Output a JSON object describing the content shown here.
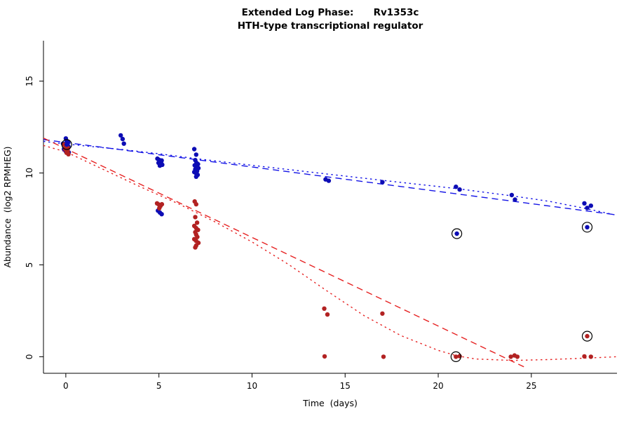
{
  "title": {
    "line1": "Extended Log Phase:      Rv1353c",
    "line2": "HTH-type transcriptional regulator"
  },
  "chart_data": {
    "type": "scatter",
    "title": "Extended Log Phase: Rv1353c / HTH-type transcriptional regulator",
    "xlabel": "Time  (days)",
    "ylabel": "Abundance  (log2 RPMHEG)",
    "xlim": [
      -1.2,
      29.6
    ],
    "ylim": [
      -0.9,
      17.2
    ],
    "x_ticks": [
      0,
      5,
      10,
      15,
      20,
      25
    ],
    "y_ticks": [
      0,
      5,
      10,
      15
    ],
    "grid": false,
    "legend": null,
    "colors": {
      "blue_point": "#0d0db5",
      "blue_line": "#1414e6",
      "red_point": "#b22222",
      "red_line": "#e62222",
      "ring": "#000000"
    },
    "series": [
      {
        "name": "series-blue",
        "color_key": "blue_point",
        "points": [
          [
            -0.15,
            11.6
          ],
          [
            0,
            11.88
          ],
          [
            0.05,
            11.74
          ],
          [
            0.12,
            11.66
          ],
          [
            -0.05,
            11.55
          ],
          [
            0.02,
            11.5
          ],
          [
            0.14,
            11.44
          ],
          [
            0.05,
            11.38
          ],
          [
            -0.1,
            11.3
          ],
          [
            0.08,
            11.26
          ],
          [
            0,
            11.18
          ],
          [
            0.16,
            11.12
          ],
          [
            2.95,
            12.05
          ],
          [
            3.05,
            11.85
          ],
          [
            3.12,
            11.6
          ],
          [
            4.92,
            10.78
          ],
          [
            5,
            10.72
          ],
          [
            5.06,
            10.66
          ],
          [
            5.12,
            10.6
          ],
          [
            4.98,
            10.55
          ],
          [
            5.1,
            10.5
          ],
          [
            5.18,
            10.45
          ],
          [
            5.05,
            10.4
          ],
          [
            5.15,
            10.68
          ],
          [
            4.95,
            7.95
          ],
          [
            5.05,
            7.85
          ],
          [
            5.15,
            7.76
          ],
          [
            6.9,
            11.3
          ],
          [
            7,
            11
          ],
          [
            6.95,
            10.7
          ],
          [
            7.02,
            10.55
          ],
          [
            7.1,
            10.48
          ],
          [
            6.92,
            10.42
          ],
          [
            7,
            10.36
          ],
          [
            7.06,
            10.3
          ],
          [
            7.12,
            10.26
          ],
          [
            6.95,
            10.2
          ],
          [
            7,
            10.15
          ],
          [
            7.05,
            10.1
          ],
          [
            6.9,
            10.05
          ],
          [
            7,
            9.98
          ],
          [
            7.08,
            9.9
          ],
          [
            7,
            9.8
          ],
          [
            13.95,
            9.65
          ],
          [
            14.12,
            9.58
          ],
          [
            17,
            9.5
          ],
          [
            20.95,
            9.25
          ],
          [
            21.15,
            9.1
          ],
          [
            23.95,
            8.8
          ],
          [
            24.12,
            8.55
          ],
          [
            27.85,
            8.35
          ],
          [
            28,
            8.1
          ],
          [
            28.2,
            8.22
          ]
        ]
      },
      {
        "name": "series-red",
        "color_key": "red_point",
        "points": [
          [
            -0.1,
            11.55
          ],
          [
            0,
            11.45
          ],
          [
            0.06,
            11.4
          ],
          [
            0.12,
            11.35
          ],
          [
            -0.04,
            11.3
          ],
          [
            0.02,
            11.24
          ],
          [
            0.1,
            11.18
          ],
          [
            0.04,
            11.1
          ],
          [
            0.14,
            11.02
          ],
          [
            4.9,
            8.35
          ],
          [
            5,
            8.28
          ],
          [
            5.08,
            8.2
          ],
          [
            5.16,
            8.3
          ],
          [
            5.02,
            8.08
          ],
          [
            6.92,
            8.45
          ],
          [
            7,
            8.3
          ],
          [
            6.95,
            7.6
          ],
          [
            7.05,
            7.3
          ],
          [
            6.9,
            7.12
          ],
          [
            7,
            7
          ],
          [
            7.1,
            6.9
          ],
          [
            6.95,
            6.78
          ],
          [
            7,
            6.65
          ],
          [
            7.06,
            6.52
          ],
          [
            6.9,
            6.4
          ],
          [
            7,
            6.3
          ],
          [
            7.12,
            6.2
          ],
          [
            7,
            6.05
          ],
          [
            6.95,
            5.95
          ],
          [
            13.88,
            2.62
          ],
          [
            14.05,
            2.3
          ],
          [
            13.9,
            0.02
          ],
          [
            17,
            2.35
          ],
          [
            17.06,
            0
          ],
          [
            21.15,
            0.03
          ],
          [
            23.9,
            0
          ],
          [
            24.1,
            0.07
          ],
          [
            24.25,
            0
          ],
          [
            27.85,
            0.02
          ],
          [
            28.2,
            0
          ]
        ]
      }
    ],
    "circled_points": [
      {
        "x": 0.05,
        "y": 11.55,
        "series": "blue"
      },
      {
        "x": 21,
        "y": 6.7,
        "series": "blue"
      },
      {
        "x": 28,
        "y": 7.05,
        "series": "blue"
      },
      {
        "x": 20.95,
        "y": 0,
        "series": "red"
      },
      {
        "x": 28,
        "y": 1.12,
        "series": "red"
      }
    ],
    "fit_lines": [
      {
        "name": "fit-blue-dashed",
        "color_key": "blue_line",
        "style": "dashed",
        "points": [
          [
            -1.2,
            11.82
          ],
          [
            29.6,
            7.72
          ]
        ]
      },
      {
        "name": "fit-blue-dotted",
        "color_key": "blue_line",
        "style": "dotted",
        "points": [
          [
            -1.2,
            11.72
          ],
          [
            0,
            11.58
          ],
          [
            3,
            11.28
          ],
          [
            5,
            11.05
          ],
          [
            7,
            10.78
          ],
          [
            10,
            10.42
          ],
          [
            14,
            9.95
          ],
          [
            17,
            9.6
          ],
          [
            21,
            9.15
          ],
          [
            24,
            8.75
          ],
          [
            26,
            8.45
          ],
          [
            28,
            8.05
          ],
          [
            29.6,
            7.7
          ]
        ]
      },
      {
        "name": "fit-red-dashed",
        "color_key": "red_line",
        "style": "dashed",
        "points": [
          [
            -1.2,
            11.9
          ],
          [
            24.6,
            -0.55
          ]
        ]
      },
      {
        "name": "fit-red-dotted",
        "color_key": "red_line",
        "style": "dotted",
        "points": [
          [
            -1.2,
            11.5
          ],
          [
            0,
            11.15
          ],
          [
            2,
            10.2
          ],
          [
            4,
            9.25
          ],
          [
            6,
            8.35
          ],
          [
            8,
            7.35
          ],
          [
            10,
            6.25
          ],
          [
            12,
            5
          ],
          [
            14,
            3.6
          ],
          [
            16,
            2.25
          ],
          [
            18,
            1.15
          ],
          [
            20,
            0.35
          ],
          [
            21,
            0.05
          ],
          [
            22,
            -0.12
          ],
          [
            24,
            -0.2
          ],
          [
            26,
            -0.15
          ],
          [
            28,
            -0.07
          ],
          [
            29.6,
            0
          ]
        ]
      }
    ]
  }
}
